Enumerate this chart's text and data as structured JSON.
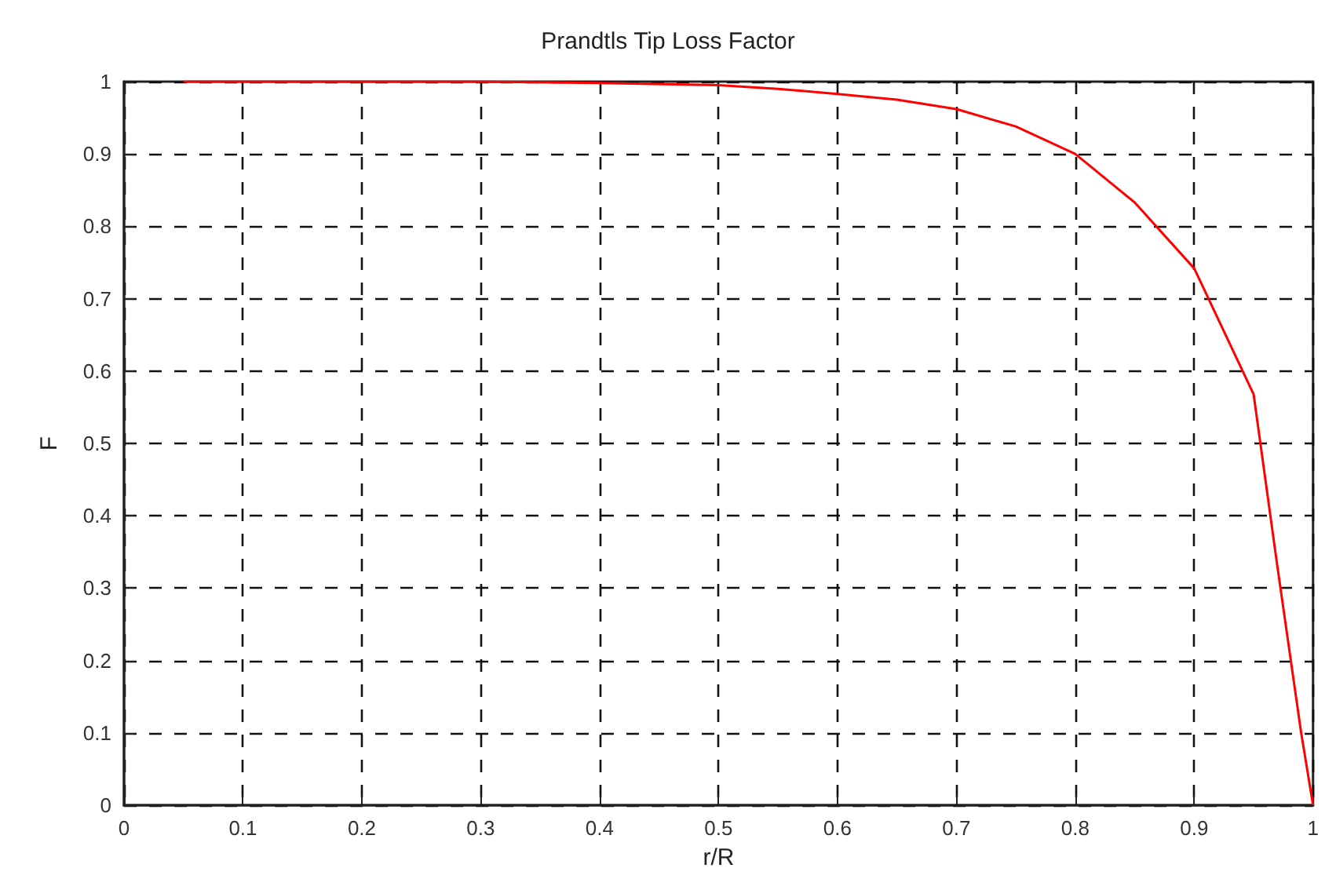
{
  "chart_data": {
    "type": "line",
    "title": "Prandtls Tip Loss Factor",
    "xlabel": "r/R",
    "ylabel": "F",
    "x": [
      0.05,
      0.3,
      0.4,
      0.5,
      0.55,
      0.6,
      0.65,
      0.7,
      0.75,
      0.8,
      0.85,
      0.9,
      0.95,
      0.97,
      0.99,
      1.0
    ],
    "series": [
      {
        "color": "#ff0000",
        "values": [
          1,
          1,
          0.998,
          0.995,
          0.99,
          0.983,
          0.975,
          0.962,
          0.938,
          0.9,
          0.833,
          0.742,
          0.568,
          0.33,
          0.1,
          0
        ]
      }
    ],
    "xlim": [
      0,
      1
    ],
    "xticks": [
      0,
      0.1,
      0.2,
      0.3,
      0.4,
      0.5,
      0.6,
      0.7,
      0.8,
      0.9,
      1
    ],
    "ylim": [
      0,
      1
    ],
    "yticks": [
      0,
      0.1,
      0.2,
      0.3,
      0.4,
      0.5,
      0.6,
      0.7,
      0.8,
      0.9,
      1
    ],
    "grid": true,
    "marker": "none",
    "line_style": "solid"
  }
}
